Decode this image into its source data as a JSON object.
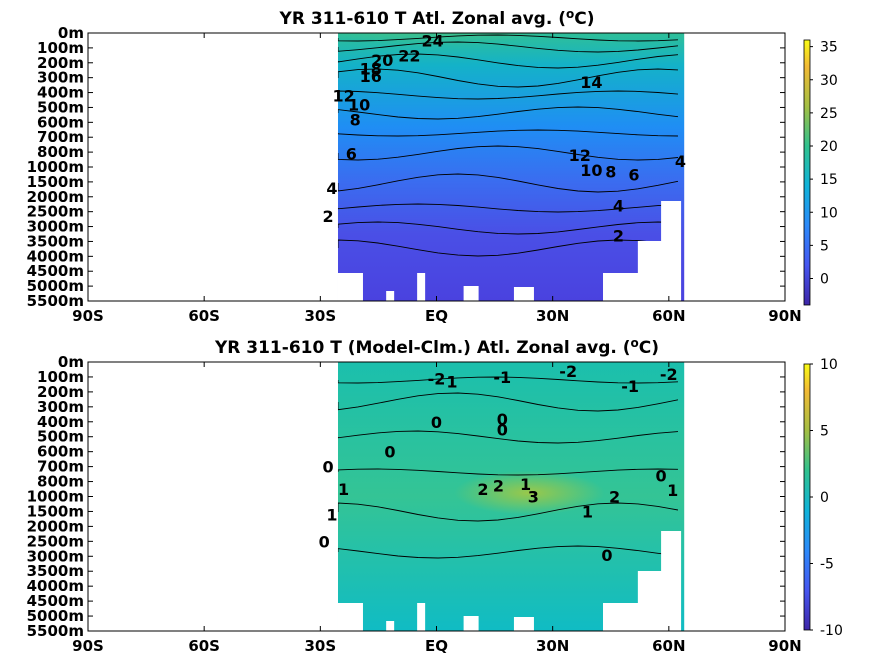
{
  "chart_data": [
    {
      "type": "heatmap",
      "title": "YR 311-610 T Atl. Zonal avg. (",
      "title_sup": "o",
      "title_unit": "C)",
      "xticks": [
        "90S",
        "60S",
        "30S",
        "EQ",
        "30N",
        "60N",
        "90N"
      ],
      "x_values": [
        -90,
        -60,
        -30,
        0,
        30,
        60,
        90
      ],
      "yticks": [
        "0m",
        "100m",
        "200m",
        "300m",
        "400m",
        "500m",
        "600m",
        "700m",
        "800m",
        "1000m",
        "1500m",
        "2000m",
        "2500m",
        "3000m",
        "3500m",
        "4000m",
        "4500m",
        "5000m",
        "5500m"
      ],
      "xlim": [
        -90,
        90
      ],
      "data_xrange": [
        -35,
        64
      ],
      "colorbar_ticks": [
        "35",
        "30",
        "25",
        "20",
        "15",
        "10",
        "5",
        "0"
      ],
      "colorbar_values": [
        35,
        30,
        25,
        20,
        15,
        10,
        5,
        0
      ],
      "colorbar_range": [
        -4,
        36
      ],
      "contour_labels": [
        {
          "text": "24",
          "x": -1,
          "y": 50
        },
        {
          "text": "22",
          "x": -7,
          "y": 150
        },
        {
          "text": "20",
          "x": -14,
          "y": 180
        },
        {
          "text": "18",
          "x": -17,
          "y": 240
        },
        {
          "text": "16",
          "x": -17,
          "y": 290
        },
        {
          "text": "14",
          "x": 40,
          "y": 330
        },
        {
          "text": "12",
          "x": -24,
          "y": 420
        },
        {
          "text": "10",
          "x": -20,
          "y": 480
        },
        {
          "text": "8",
          "x": -21,
          "y": 580
        },
        {
          "text": "6",
          "x": -22,
          "y": 820
        },
        {
          "text": "12",
          "x": 37,
          "y": 840
        },
        {
          "text": "10",
          "x": 40,
          "y": 1100
        },
        {
          "text": "8",
          "x": 45,
          "y": 1150
        },
        {
          "text": "6",
          "x": 51,
          "y": 1250
        },
        {
          "text": "4",
          "x": 63,
          "y": 920
        },
        {
          "text": "4",
          "x": -27,
          "y": 1700
        },
        {
          "text": "4",
          "x": 47,
          "y": 2300
        },
        {
          "text": "2",
          "x": -28,
          "y": 2650
        },
        {
          "text": "2",
          "x": 47,
          "y": 3300
        }
      ]
    },
    {
      "type": "heatmap",
      "title": "YR 311-610 T (Model-Clm.) Atl. Zonal avg. (",
      "title_sup": "o",
      "title_unit": "C)",
      "xticks": [
        "90S",
        "60S",
        "30S",
        "EQ",
        "30N",
        "60N",
        "90N"
      ],
      "x_values": [
        -90,
        -60,
        -30,
        0,
        30,
        60,
        90
      ],
      "yticks": [
        "0m",
        "100m",
        "200m",
        "300m",
        "400m",
        "500m",
        "600m",
        "700m",
        "800m",
        "1000m",
        "1500m",
        "2000m",
        "2500m",
        "3000m",
        "3500m",
        "4000m",
        "4500m",
        "5000m",
        "5500m"
      ],
      "xlim": [
        -90,
        90
      ],
      "data_xrange": [
        -35,
        64
      ],
      "colorbar_ticks": [
        "10",
        "5",
        "0",
        "-5",
        "-10"
      ],
      "colorbar_values": [
        10,
        5,
        0,
        -5,
        -10
      ],
      "colorbar_range": [
        -10,
        10
      ],
      "contour_labels": [
        {
          "text": "-2",
          "x": 0,
          "y": 110
        },
        {
          "text": "1",
          "x": 4,
          "y": 130
        },
        {
          "text": "-1",
          "x": 17,
          "y": 100
        },
        {
          "text": "-2",
          "x": 34,
          "y": 60
        },
        {
          "text": "-1",
          "x": 50,
          "y": 160
        },
        {
          "text": "-2",
          "x": 60,
          "y": 80
        },
        {
          "text": "0",
          "x": 0,
          "y": 400
        },
        {
          "text": "0",
          "x": 17,
          "y": 380
        },
        {
          "text": "0",
          "x": 17,
          "y": 450
        },
        {
          "text": "0",
          "x": -12,
          "y": 600
        },
        {
          "text": "0",
          "x": -28,
          "y": 700
        },
        {
          "text": "0",
          "x": 58,
          "y": 760
        },
        {
          "text": "2",
          "x": 12,
          "y": 900
        },
        {
          "text": "2",
          "x": 16,
          "y": 850
        },
        {
          "text": "1",
          "x": 23,
          "y": 830
        },
        {
          "text": "1",
          "x": -24,
          "y": 900
        },
        {
          "text": "3",
          "x": 25,
          "y": 1000
        },
        {
          "text": "2",
          "x": 46,
          "y": 1000
        },
        {
          "text": "1",
          "x": 61,
          "y": 910
        },
        {
          "text": "1",
          "x": -27,
          "y": 1600
        },
        {
          "text": "1",
          "x": 39,
          "y": 1500
        },
        {
          "text": "0",
          "x": -29,
          "y": 2500
        },
        {
          "text": "0",
          "x": 44,
          "y": 2950
        }
      ]
    }
  ]
}
